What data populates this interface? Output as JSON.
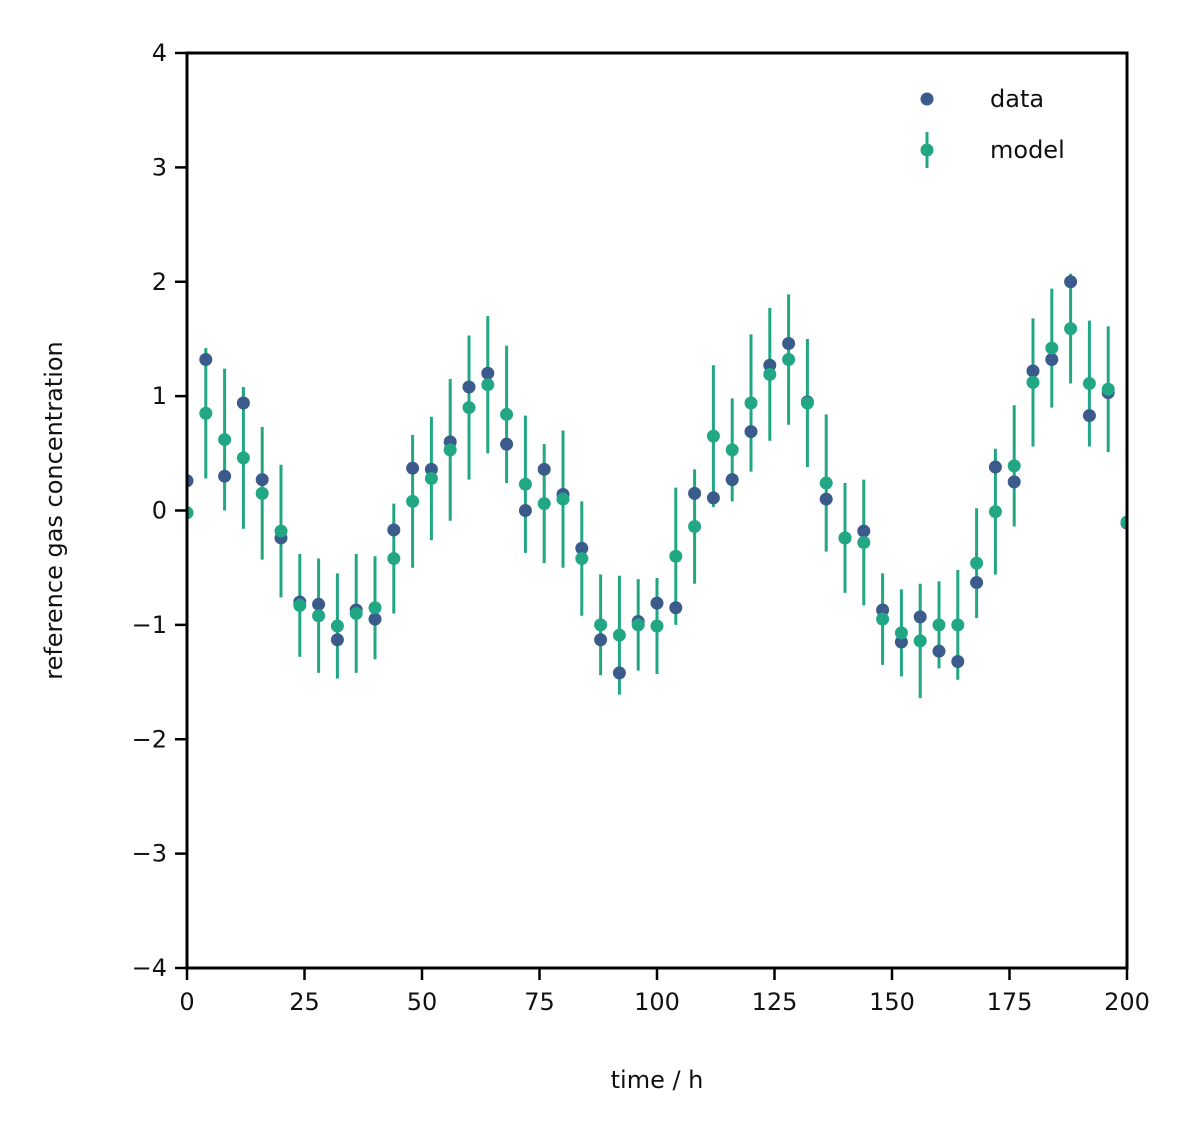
{
  "chart_data": {
    "type": "scatter",
    "title": "",
    "xlabel": "time / h",
    "ylabel": "reference gas concentration",
    "xlim": [
      0,
      200
    ],
    "ylim": [
      -4,
      4
    ],
    "xticks": [
      0,
      25,
      50,
      75,
      100,
      125,
      150,
      175,
      200
    ],
    "yticks": [
      -4,
      -3,
      -2,
      -1,
      0,
      1,
      2,
      3,
      4
    ],
    "xtick_labels": [
      "0",
      "25",
      "50",
      "75",
      "100",
      "125",
      "150",
      "175",
      "200"
    ],
    "ytick_labels": [
      "−4",
      "−3",
      "−2",
      "−1",
      "0",
      "1",
      "2",
      "3",
      "4"
    ],
    "grid": false,
    "legend_position": "top-right",
    "series": [
      {
        "name": "data",
        "color": "#3b5b8c",
        "marker": "circle",
        "x": [
          0,
          4,
          8,
          12,
          16,
          20,
          24,
          28,
          32,
          36,
          40,
          44,
          48,
          52,
          56,
          60,
          64,
          68,
          72,
          76,
          80,
          84,
          88,
          92,
          96,
          100,
          104,
          108,
          112,
          116,
          120,
          124,
          128,
          132,
          136,
          140,
          144,
          148,
          152,
          156,
          160,
          164,
          168,
          172,
          176,
          180,
          184,
          188,
          192,
          196,
          200
        ],
        "y": [
          0.26,
          1.32,
          0.3,
          0.94,
          0.27,
          -0.24,
          -0.8,
          -0.82,
          -1.13,
          -0.87,
          -0.95,
          -0.17,
          0.37,
          0.36,
          0.6,
          1.08,
          1.2,
          0.58,
          0.0,
          0.36,
          0.14,
          -0.33,
          -1.13,
          -1.42,
          -0.97,
          -0.81,
          -0.85,
          0.15,
          0.11,
          0.27,
          0.69,
          1.27,
          1.46,
          0.95,
          0.1,
          -0.24,
          -0.18,
          -0.87,
          -1.15,
          -0.93,
          -1.23,
          -1.32,
          -0.63,
          0.38,
          0.25,
          1.22,
          1.32,
          2.0,
          0.83,
          1.03,
          -0.11
        ]
      },
      {
        "name": "model",
        "color": "#22a784",
        "marker": "circle",
        "x": [
          0,
          4,
          8,
          12,
          16,
          20,
          24,
          28,
          32,
          36,
          40,
          44,
          48,
          52,
          56,
          60,
          64,
          68,
          72,
          76,
          80,
          84,
          88,
          92,
          96,
          100,
          104,
          108,
          112,
          116,
          120,
          124,
          128,
          132,
          136,
          140,
          144,
          148,
          152,
          156,
          160,
          164,
          168,
          172,
          176,
          180,
          184,
          188,
          192,
          196,
          200
        ],
        "y": [
          -0.02,
          0.85,
          0.62,
          0.46,
          0.15,
          -0.18,
          -0.83,
          -0.92,
          -1.01,
          -0.9,
          -0.85,
          -0.42,
          0.08,
          0.28,
          0.53,
          0.9,
          1.1,
          0.84,
          0.23,
          0.06,
          0.1,
          -0.42,
          -1.0,
          -1.09,
          -1.0,
          -1.01,
          -0.4,
          -0.14,
          0.65,
          0.53,
          0.94,
          1.19,
          1.32,
          0.94,
          0.24,
          -0.24,
          -0.28,
          -0.95,
          -1.07,
          -1.14,
          -1.0,
          -1.0,
          -0.46,
          -0.01,
          0.39,
          1.12,
          1.42,
          1.59,
          1.11,
          1.06,
          -0.1
        ],
        "error": [
          0.5,
          0.57,
          0.62,
          0.62,
          0.58,
          0.58,
          0.45,
          0.5,
          0.46,
          0.52,
          0.45,
          0.48,
          0.58,
          0.54,
          0.62,
          0.63,
          0.6,
          0.6,
          0.6,
          0.52,
          0.6,
          0.5,
          0.44,
          0.52,
          0.4,
          0.42,
          0.6,
          0.5,
          0.62,
          0.45,
          0.6,
          0.58,
          0.57,
          0.56,
          0.6,
          0.48,
          0.55,
          0.4,
          0.38,
          0.5,
          0.38,
          0.48,
          0.48,
          0.55,
          0.53,
          0.56,
          0.52,
          0.48,
          0.55,
          0.55,
          0.5
        ]
      }
    ]
  }
}
